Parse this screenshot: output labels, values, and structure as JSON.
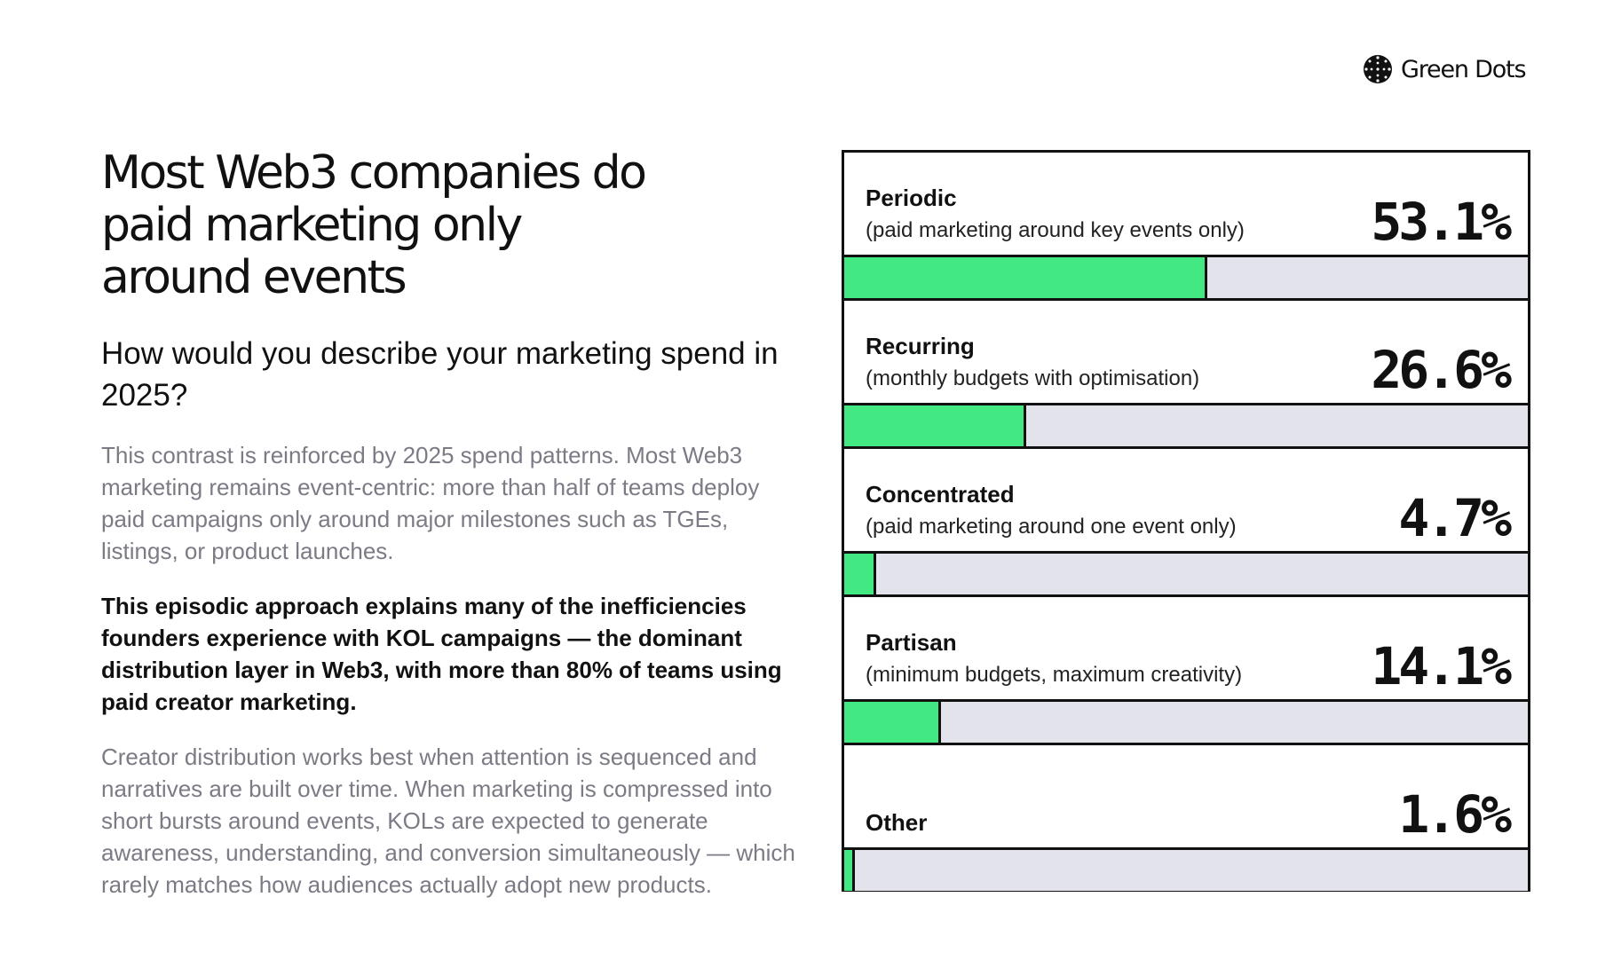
{
  "brand": {
    "name": "Green Dots",
    "logo_icon": "globe-dots-icon"
  },
  "title": "Most Web3 companies do paid marketing only around events",
  "question": "How would you describe your marketing spend in 2025?",
  "paragraphs": [
    {
      "text": "This contrast is reinforced by 2025 spend patterns. Most Web3 marketing remains event-centric: more than half of teams deploy paid campaigns only around major milestones such as TGEs, listings, or product launches.",
      "style": "muted"
    },
    {
      "text": "This episodic approach explains many of the inefficiencies founders experience with KOL campaigns — the dominant distribution layer in Web3, with more than 80% of teams using paid creator marketing.",
      "style": "bold"
    },
    {
      "text": "Creator distribution works best when attention is sequenced and narratives are built over time. When marketing is compressed into short bursts around events, KOLs are expected to generate awareness, understanding, and conversion simultaneously — which rarely matches how audiences actually adopt new products.",
      "style": "muted"
    }
  ],
  "colors": {
    "fill": "#42e882",
    "track": "#e3e3ec",
    "border": "#111111",
    "muted_text": "#7b7b86"
  },
  "chart_data": {
    "type": "bar",
    "orientation": "horizontal",
    "categories": [
      "Periodic",
      "Recurring",
      "Concentrated",
      "Partisan",
      "Other"
    ],
    "descriptions": [
      "(paid marketing around key events only)",
      "(monthly budgets with optimisation)",
      "(paid marketing around one event only)",
      "(minimum budgets, maximum creativity)",
      ""
    ],
    "values": [
      53.1,
      26.6,
      4.7,
      14.1,
      1.6
    ],
    "value_labels": [
      "53.1%",
      "26.6%",
      "4.7%",
      "14.1%",
      "1.6%"
    ],
    "xlim": [
      0,
      100
    ],
    "unit": "%"
  }
}
